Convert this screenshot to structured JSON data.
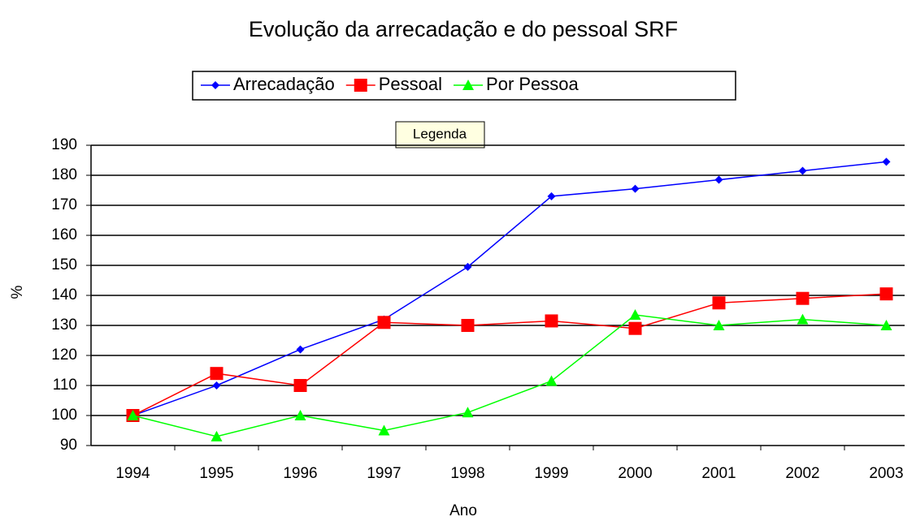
{
  "chart_data": {
    "type": "line",
    "title": "Evolução da arrecadação e do pessoal SRF",
    "x_label": "Ano",
    "y_label": "%",
    "tooltip": "Legenda",
    "categories": [
      "1994",
      "1995",
      "1996",
      "1997",
      "1998",
      "1999",
      "2000",
      "2001",
      "2002",
      "2003"
    ],
    "series": [
      {
        "name": "Arrecadação",
        "color": "#0000ff",
        "marker": "diamond",
        "values": [
          100,
          110,
          122,
          132,
          149.5,
          173,
          175.5,
          178.5,
          181.5,
          184.5
        ]
      },
      {
        "name": "Pessoal",
        "color": "#ff0000",
        "marker": "square",
        "values": [
          100,
          114,
          110,
          131,
          130,
          131.5,
          129,
          137.5,
          139,
          140.5
        ]
      },
      {
        "name": "Por Pessoa",
        "color": "#00ff00",
        "marker": "triangle",
        "values": [
          100,
          93,
          100,
          95,
          101,
          111.5,
          133.5,
          130,
          132,
          130
        ]
      }
    ],
    "ylim": [
      90,
      190
    ],
    "yticks": [
      90,
      100,
      110,
      120,
      130,
      140,
      150,
      160,
      170,
      180,
      190
    ],
    "grid": true,
    "legend": "top"
  }
}
